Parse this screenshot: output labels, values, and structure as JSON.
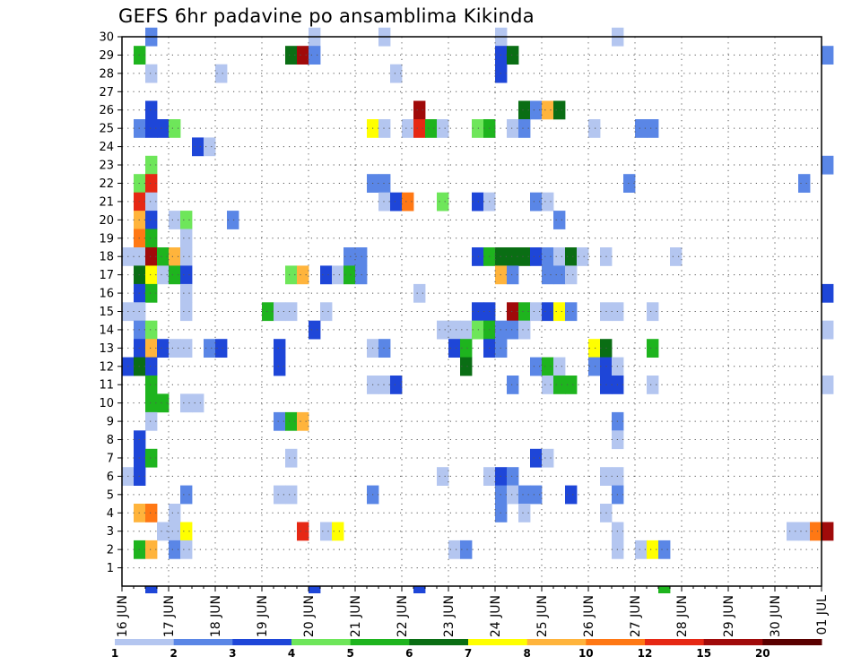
{
  "chart_data": {
    "type": "heatmap",
    "title": "GEFS 6hr padavine po ansamblima Kikinda",
    "xlabel": "",
    "ylabel": "",
    "x_tick_labels": [
      "16 JUN",
      "17 JUN",
      "18 JUN",
      "19 JUN",
      "20 JUN",
      "21 JUN",
      "22 JUN",
      "23 JUN",
      "24 JUN",
      "25 JUN",
      "26 JUN",
      "27 JUN",
      "28 JUN",
      "29 JUN",
      "30 JUN",
      "01 JUL"
    ],
    "x_range_steps": [
      0,
      60
    ],
    "steps_per_day": 4,
    "y_tick_labels": [
      1,
      2,
      3,
      4,
      5,
      6,
      7,
      8,
      9,
      10,
      11,
      12,
      13,
      14,
      15,
      16,
      17,
      18,
      19,
      20,
      21,
      22,
      23,
      24,
      25,
      26,
      27,
      28,
      29,
      30
    ],
    "y_range": [
      0,
      30
    ],
    "grid": true,
    "colorbar": {
      "labels": [
        "1",
        "2",
        "3",
        "4",
        "5",
        "6",
        "7",
        "8",
        "10",
        "12",
        "15",
        "20"
      ],
      "colors": [
        "#b4c6f0",
        "#5a86e6",
        "#1e46d8",
        "#6ee65a",
        "#1eb41e",
        "#0a6e14",
        "#ffff00",
        "#ffb43c",
        "#ff7814",
        "#e62814",
        "#a00a0a",
        "#5a0000"
      ]
    },
    "cells": [
      [
        1,
        30,
        1
      ],
      [
        15,
        30,
        0
      ],
      [
        21,
        30,
        0
      ],
      [
        31,
        30,
        0
      ],
      [
        41,
        30,
        0
      ],
      [
        0,
        29,
        4
      ],
      [
        13,
        29,
        5
      ],
      [
        14,
        29,
        10
      ],
      [
        15,
        29,
        1
      ],
      [
        31,
        29,
        2
      ],
      [
        32,
        29,
        5
      ],
      [
        59,
        29,
        1
      ],
      [
        1,
        28,
        0
      ],
      [
        7,
        28,
        0
      ],
      [
        22,
        28,
        0
      ],
      [
        31,
        28,
        2
      ],
      [
        1,
        26,
        2
      ],
      [
        24,
        26,
        10
      ],
      [
        33,
        26,
        5
      ],
      [
        34,
        26,
        1
      ],
      [
        35,
        26,
        7
      ],
      [
        36,
        26,
        5
      ],
      [
        0,
        25,
        1
      ],
      [
        1,
        25,
        2
      ],
      [
        2,
        25,
        2
      ],
      [
        3,
        25,
        3
      ],
      [
        20,
        25,
        6
      ],
      [
        21,
        25,
        0
      ],
      [
        23,
        25,
        0
      ],
      [
        24,
        25,
        9
      ],
      [
        25,
        25,
        4
      ],
      [
        26,
        25,
        0
      ],
      [
        29,
        25,
        3
      ],
      [
        30,
        25,
        4
      ],
      [
        32,
        25,
        0
      ],
      [
        33,
        25,
        1
      ],
      [
        39,
        25,
        0
      ],
      [
        43,
        25,
        1
      ],
      [
        44,
        25,
        1
      ],
      [
        5,
        24,
        2
      ],
      [
        6,
        24,
        0
      ],
      [
        1,
        23,
        3
      ],
      [
        59,
        23,
        1
      ],
      [
        0,
        22,
        3
      ],
      [
        1,
        22,
        9
      ],
      [
        20,
        22,
        1
      ],
      [
        21,
        22,
        1
      ],
      [
        42,
        22,
        1
      ],
      [
        57,
        22,
        1
      ],
      [
        0,
        21,
        9
      ],
      [
        1,
        21,
        0
      ],
      [
        21,
        21,
        0
      ],
      [
        22,
        21,
        2
      ],
      [
        23,
        21,
        8
      ],
      [
        26,
        21,
        3
      ],
      [
        29,
        21,
        2
      ],
      [
        30,
        21,
        0
      ],
      [
        34,
        21,
        1
      ],
      [
        35,
        21,
        0
      ],
      [
        0,
        20,
        7
      ],
      [
        1,
        20,
        2
      ],
      [
        3,
        20,
        0
      ],
      [
        4,
        20,
        3
      ],
      [
        8,
        20,
        1
      ],
      [
        36,
        20,
        1
      ],
      [
        0,
        19,
        8
      ],
      [
        1,
        19,
        4
      ],
      [
        4,
        19,
        0
      ],
      [
        18,
        18,
        1
      ],
      [
        -1,
        18,
        0
      ],
      [
        0,
        18,
        0
      ],
      [
        1,
        18,
        10
      ],
      [
        2,
        18,
        4
      ],
      [
        3,
        18,
        7
      ],
      [
        4,
        18,
        0
      ],
      [
        19,
        18,
        1
      ],
      [
        29,
        18,
        2
      ],
      [
        30,
        18,
        4
      ],
      [
        31,
        18,
        5
      ],
      [
        32,
        18,
        5
      ],
      [
        33,
        18,
        5
      ],
      [
        34,
        18,
        2
      ],
      [
        35,
        18,
        1
      ],
      [
        36,
        18,
        0
      ],
      [
        37,
        18,
        5
      ],
      [
        38,
        18,
        0
      ],
      [
        40,
        18,
        0
      ],
      [
        46,
        18,
        0
      ],
      [
        0,
        17,
        5
      ],
      [
        1,
        17,
        6
      ],
      [
        2,
        17,
        0
      ],
      [
        3,
        17,
        4
      ],
      [
        4,
        17,
        2
      ],
      [
        13,
        17,
        3
      ],
      [
        14,
        17,
        7
      ],
      [
        16,
        17,
        2
      ],
      [
        17,
        17,
        0
      ],
      [
        18,
        17,
        4
      ],
      [
        19,
        17,
        1
      ],
      [
        31,
        17,
        7
      ],
      [
        32,
        17,
        1
      ],
      [
        35,
        17,
        1
      ],
      [
        36,
        17,
        1
      ],
      [
        37,
        17,
        0
      ],
      [
        0,
        16,
        2
      ],
      [
        1,
        16,
        4
      ],
      [
        4,
        16,
        0
      ],
      [
        24,
        16,
        0
      ],
      [
        59,
        16,
        2
      ],
      [
        -1,
        15,
        0
      ],
      [
        0,
        15,
        0
      ],
      [
        4,
        15,
        0
      ],
      [
        11,
        15,
        4
      ],
      [
        12,
        15,
        0
      ],
      [
        13,
        15,
        0
      ],
      [
        16,
        15,
        0
      ],
      [
        29,
        15,
        2
      ],
      [
        30,
        15,
        2
      ],
      [
        32,
        15,
        10
      ],
      [
        33,
        15,
        4
      ],
      [
        34,
        15,
        0
      ],
      [
        35,
        15,
        2
      ],
      [
        36,
        15,
        6
      ],
      [
        37,
        15,
        1
      ],
      [
        40,
        15,
        0
      ],
      [
        41,
        15,
        0
      ],
      [
        44,
        15,
        0
      ],
      [
        0,
        14,
        1
      ],
      [
        1,
        14,
        3
      ],
      [
        15,
        14,
        2
      ],
      [
        26,
        14,
        0
      ],
      [
        27,
        14,
        0
      ],
      [
        28,
        14,
        0
      ],
      [
        29,
        14,
        3
      ],
      [
        30,
        14,
        4
      ],
      [
        31,
        14,
        1
      ],
      [
        32,
        14,
        1
      ],
      [
        33,
        14,
        0
      ],
      [
        59,
        14,
        0
      ],
      [
        0,
        13,
        2
      ],
      [
        1,
        13,
        7
      ],
      [
        2,
        13,
        2
      ],
      [
        3,
        13,
        0
      ],
      [
        4,
        13,
        0
      ],
      [
        6,
        13,
        1
      ],
      [
        7,
        13,
        2
      ],
      [
        12,
        13,
        2
      ],
      [
        20,
        13,
        0
      ],
      [
        21,
        13,
        1
      ],
      [
        27,
        13,
        2
      ],
      [
        28,
        13,
        4
      ],
      [
        30,
        13,
        2
      ],
      [
        31,
        13,
        1
      ],
      [
        39,
        13,
        6
      ],
      [
        40,
        13,
        5
      ],
      [
        44,
        13,
        4
      ],
      [
        -1,
        12,
        2
      ],
      [
        0,
        12,
        5
      ],
      [
        1,
        12,
        2
      ],
      [
        12,
        12,
        2
      ],
      [
        28,
        12,
        5
      ],
      [
        34,
        12,
        1
      ],
      [
        35,
        12,
        4
      ],
      [
        36,
        12,
        0
      ],
      [
        39,
        12,
        1
      ],
      [
        40,
        12,
        2
      ],
      [
        41,
        12,
        0
      ],
      [
        1,
        11,
        4
      ],
      [
        37,
        11,
        4
      ],
      [
        32,
        11,
        1
      ],
      [
        35,
        11,
        0
      ],
      [
        36,
        11,
        4
      ],
      [
        40,
        11,
        2
      ],
      [
        41,
        11,
        2
      ],
      [
        20,
        11,
        0
      ],
      [
        21,
        11,
        0
      ],
      [
        22,
        11,
        2
      ],
      [
        44,
        11,
        0
      ],
      [
        59,
        11,
        0
      ],
      [
        1,
        10,
        4
      ],
      [
        2,
        10,
        4
      ],
      [
        4,
        10,
        0
      ],
      [
        5,
        10,
        0
      ],
      [
        1,
        9,
        0
      ],
      [
        12,
        9,
        1
      ],
      [
        13,
        9,
        4
      ],
      [
        14,
        9,
        7
      ],
      [
        41,
        9,
        1
      ],
      [
        0,
        8,
        2
      ],
      [
        41,
        8,
        0
      ],
      [
        0,
        7,
        2
      ],
      [
        1,
        7,
        4
      ],
      [
        13,
        7,
        0
      ],
      [
        34,
        7,
        2
      ],
      [
        35,
        7,
        0
      ],
      [
        -1,
        6,
        0
      ],
      [
        0,
        6,
        2
      ],
      [
        26,
        6,
        0
      ],
      [
        30,
        6,
        0
      ],
      [
        31,
        6,
        2
      ],
      [
        32,
        6,
        1
      ],
      [
        40,
        6,
        0
      ],
      [
        41,
        6,
        0
      ],
      [
        4,
        5,
        1
      ],
      [
        12,
        5,
        0
      ],
      [
        13,
        5,
        0
      ],
      [
        20,
        5,
        1
      ],
      [
        31,
        5,
        1
      ],
      [
        32,
        5,
        0
      ],
      [
        33,
        5,
        1
      ],
      [
        34,
        5,
        1
      ],
      [
        37,
        5,
        2
      ],
      [
        41,
        5,
        1
      ],
      [
        0,
        4,
        7
      ],
      [
        1,
        4,
        8
      ],
      [
        3,
        4,
        0
      ],
      [
        31,
        4,
        1
      ],
      [
        33,
        4,
        0
      ],
      [
        40,
        4,
        0
      ],
      [
        2,
        3,
        0
      ],
      [
        3,
        3,
        0
      ],
      [
        4,
        3,
        6
      ],
      [
        14,
        3,
        9
      ],
      [
        16,
        3,
        0
      ],
      [
        17,
        3,
        6
      ],
      [
        41,
        3,
        0
      ],
      [
        56,
        3,
        0
      ],
      [
        57,
        3,
        0
      ],
      [
        58,
        3,
        8
      ],
      [
        59,
        3,
        10
      ],
      [
        0,
        2,
        4
      ],
      [
        1,
        2,
        7
      ],
      [
        3,
        2,
        1
      ],
      [
        4,
        2,
        0
      ],
      [
        27,
        2,
        0
      ],
      [
        28,
        2,
        1
      ],
      [
        41,
        2,
        0
      ],
      [
        43,
        2,
        0
      ],
      [
        44,
        2,
        6
      ],
      [
        45,
        2,
        1
      ]
    ],
    "bottom_row_extras": [
      [
        1,
        2
      ],
      [
        15,
        2
      ],
      [
        24,
        2
      ],
      [
        45,
        4
      ]
    ]
  }
}
